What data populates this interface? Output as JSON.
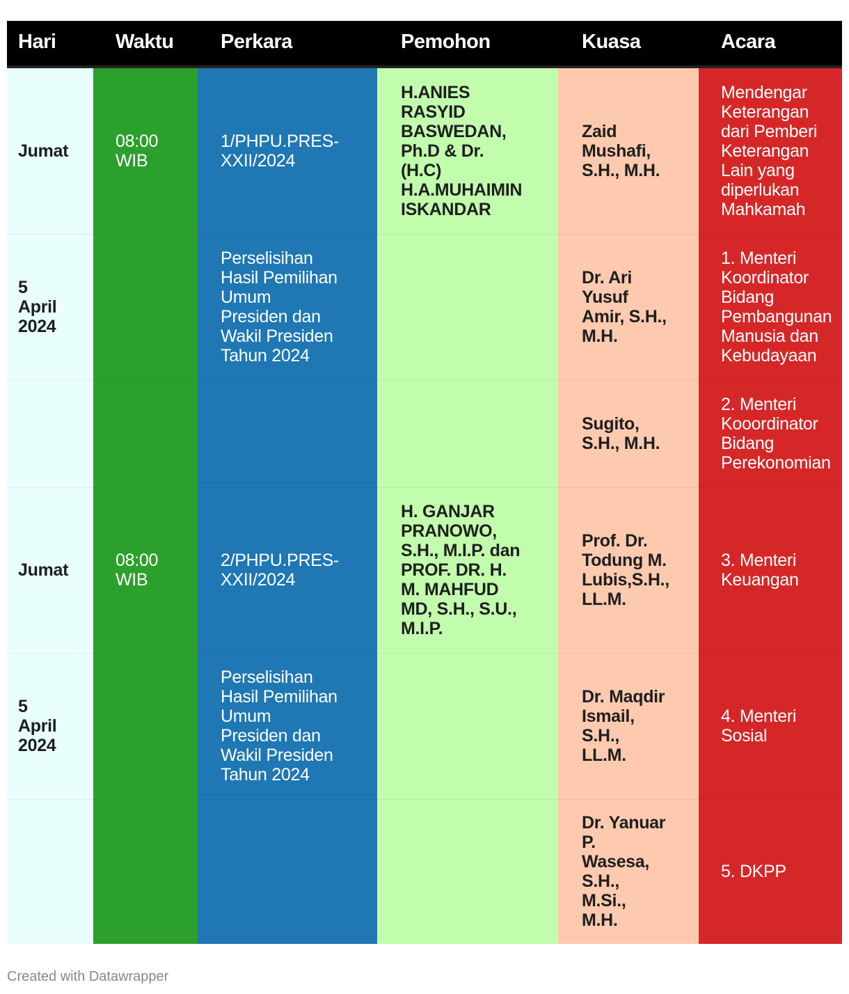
{
  "headers": [
    "Hari",
    "Waktu",
    "Perkara",
    "Pemohon",
    "Kuasa",
    "Acara"
  ],
  "rows": [
    {
      "hari": "Jumat",
      "waktu": "08:00\nWIB",
      "perkara": "1/PHPU.PRES-\nXXII/2024",
      "pemohon": "H.ANIES\nRASYID\nBASWEDAN,\nPh.D & Dr.\n(H.C)\nH.A.MUHAIMIN\nISKANDAR",
      "kuasa": "Zaid\nMushafi,\nS.H., M.H.",
      "acara": "Mendengar\nKeterangan\ndari Pemberi\nKeterangan\nLain yang\ndiperlukan\nMahkamah"
    },
    {
      "hari": "5\nApril\n2024",
      "waktu": "",
      "perkara": "Perselisihan\nHasil Pemilihan\nUmum\nPresiden dan\nWakil Presiden\nTahun 2024",
      "pemohon": "",
      "kuasa": "Dr. Ari\nYusuf\nAmir, S.H.,\nM.H.",
      "acara": "1. Menteri\nKoordinator\nBidang\nPembangunan\nManusia dan\nKebudayaan"
    },
    {
      "hari": "",
      "waktu": "",
      "perkara": "",
      "pemohon": "",
      "kuasa": "Sugito,\nS.H., M.H.",
      "acara": "2. Menteri\nKooordinator\nBidang\nPerekonomian"
    },
    {
      "hari": "Jumat",
      "waktu": "08:00\nWIB",
      "perkara": "2/PHPU.PRES-\nXXII/2024",
      "pemohon": "H. GANJAR\nPRANOWO,\nS.H., M.I.P. dan\nPROF. DR. H.\nM. MAHFUD\nMD, S.H., S.U.,\nM.I.P.",
      "kuasa": "Prof. Dr.\nTodung M.\nLubis,S.H.,\nLL.M.",
      "acara": "3. Menteri\nKeuangan"
    },
    {
      "hari": "5\nApril\n2024",
      "waktu": "",
      "perkara": "Perselisihan\nHasil Pemilihan\nUmum\nPresiden dan\nWakil Presiden\nTahun 2024",
      "pemohon": "",
      "kuasa": "Dr. Maqdir\nIsmail,\nS.H.,\nLL.M.",
      "acara": "4. Menteri\nSosial"
    },
    {
      "hari": "",
      "waktu": "",
      "perkara": "",
      "pemohon": "",
      "kuasa": "Dr. Yanuar\nP.\nWasesa,\nS.H.,\nM.Si.,\nM.H.",
      "acara": "5. DKPP"
    }
  ],
  "column_colors": [
    "#e8fffd",
    "#2ca02c",
    "#1f77b4",
    "#c2fdad",
    "#fdcab0",
    "#d62728"
  ],
  "footer": "Created with Datawrapper"
}
